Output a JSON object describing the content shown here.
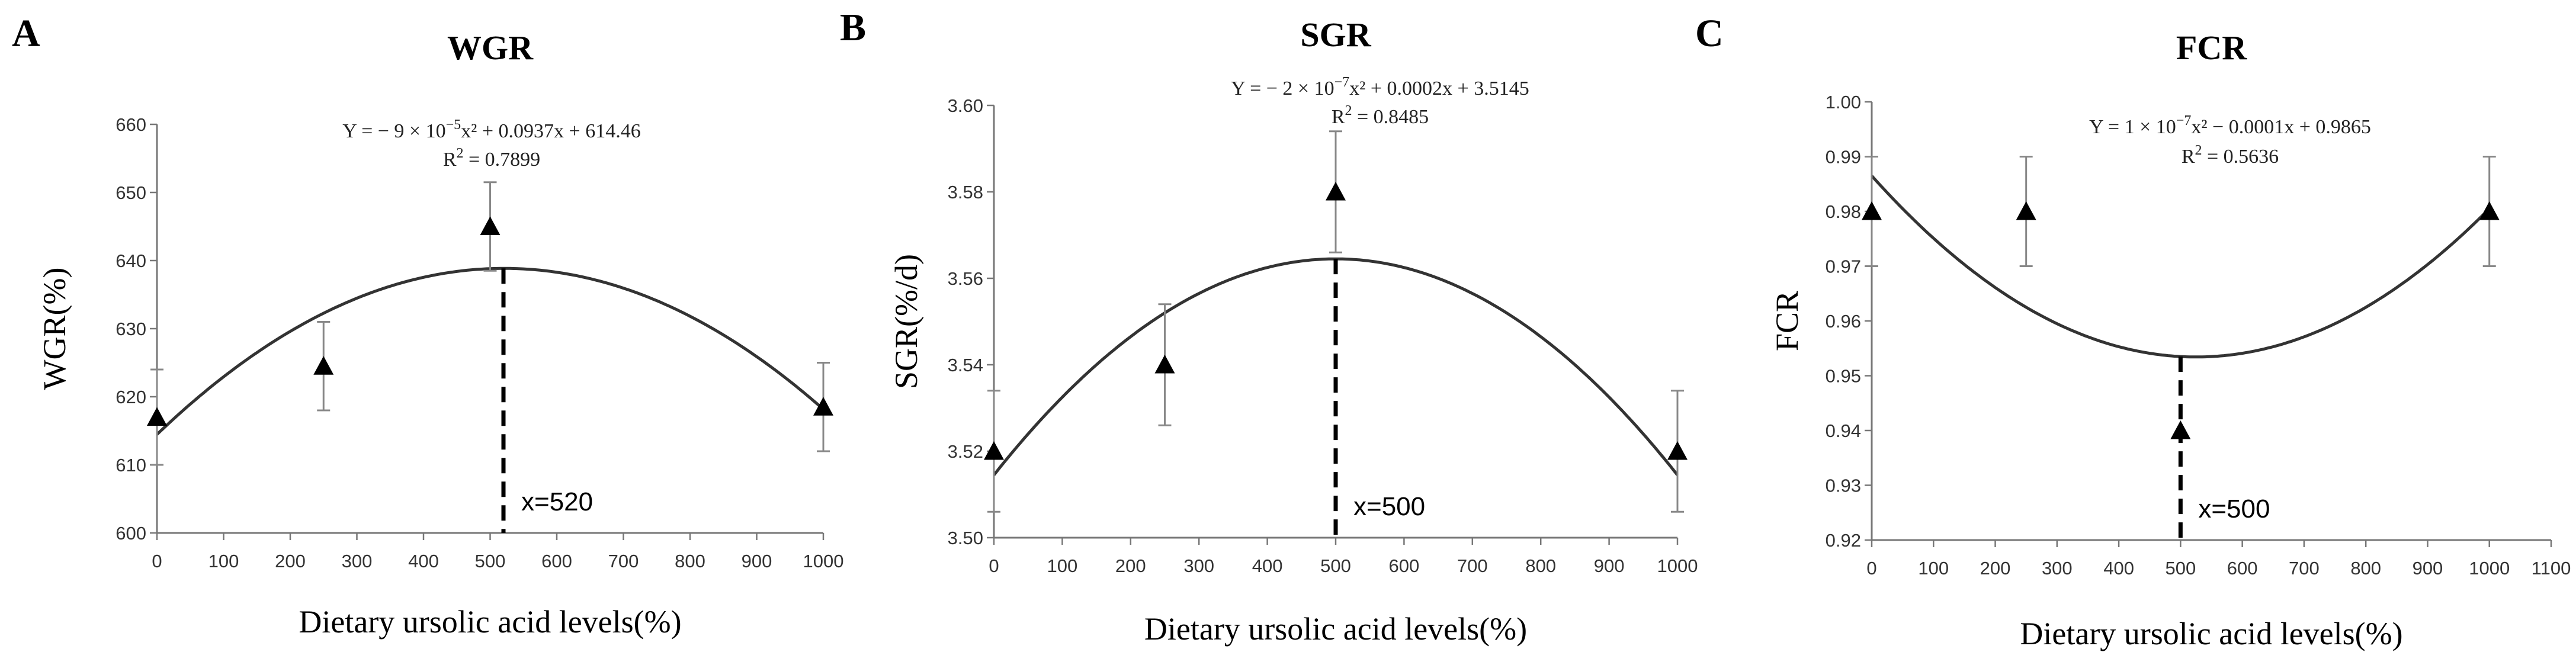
{
  "chart_data": [
    {
      "panel": "A",
      "type": "scatter",
      "title": "WGR",
      "xlabel": "Dietary ursolic acid levels(%)",
      "ylabel": "WGR(%)",
      "xlim": [
        0,
        1000
      ],
      "xticks": [
        0,
        100,
        200,
        300,
        400,
        500,
        600,
        700,
        800,
        900,
        1000
      ],
      "ylim": [
        600,
        660
      ],
      "yticks": [
        600,
        610,
        620,
        630,
        640,
        650,
        660
      ],
      "ytick_decimals": 0,
      "points": [
        {
          "x": 0,
          "y": 617,
          "err": 7
        },
        {
          "x": 250,
          "y": 624.5,
          "err": 6.5
        },
        {
          "x": 500,
          "y": 645,
          "err": 6.5
        },
        {
          "x": 1000,
          "y": 618.5,
          "err": 6.5
        }
      ],
      "fit": {
        "a": -9e-05,
        "b": 0.0937,
        "c": 614.46
      },
      "equation_pre": "Y = − 9 × 10",
      "equation_exp": "−5",
      "equation_post": "x² + 0.0937x + 614.46",
      "r2_pre": "R",
      "r2_post": " = 0.7899",
      "optimum_x": 520,
      "optimum_label": "x=520"
    },
    {
      "panel": "B",
      "type": "scatter",
      "title": "SGR",
      "xlabel": "Dietary ursolic acid levels(%)",
      "ylabel": "SGR(%/d)",
      "xlim": [
        0,
        1000
      ],
      "xticks": [
        0,
        100,
        200,
        300,
        400,
        500,
        600,
        700,
        800,
        900,
        1000
      ],
      "ylim": [
        3.5,
        3.6
      ],
      "yticks": [
        3.5,
        3.52,
        3.54,
        3.56,
        3.58,
        3.6
      ],
      "ytick_decimals": 2,
      "points": [
        {
          "x": 0,
          "y": 3.52,
          "err": 0.014
        },
        {
          "x": 250,
          "y": 3.54,
          "err": 0.014
        },
        {
          "x": 500,
          "y": 3.58,
          "err": 0.014
        },
        {
          "x": 1000,
          "y": 3.52,
          "err": 0.014
        }
      ],
      "fit": {
        "a": -2e-07,
        "b": 0.0002,
        "c": 3.5145
      },
      "equation_pre": "Y = − 2 × 10",
      "equation_exp": "−7",
      "equation_post": "x² + 0.0002x + 3.5145",
      "r2_pre": "R",
      "r2_post": " = 0.8485",
      "optimum_x": 500,
      "optimum_label": "x=500"
    },
    {
      "panel": "C",
      "type": "scatter",
      "title": "FCR",
      "xlabel": "Dietary ursolic acid levels(%)",
      "ylabel": "FCR",
      "xlim": [
        0,
        1100
      ],
      "xticks": [
        0,
        100,
        200,
        300,
        400,
        500,
        600,
        700,
        800,
        900,
        1000,
        1100
      ],
      "ylim": [
        0.92,
        1.0
      ],
      "yticks": [
        0.92,
        0.93,
        0.94,
        0.95,
        0.96,
        0.97,
        0.98,
        0.99,
        1.0
      ],
      "ytick_decimals": 2,
      "points": [
        {
          "x": 0,
          "y": 0.98,
          "err": 0.01
        },
        {
          "x": 250,
          "y": 0.98,
          "err": 0.01
        },
        {
          "x": 500,
          "y": 0.94,
          "err": 0
        },
        {
          "x": 1000,
          "y": 0.98,
          "err": 0.01
        }
      ],
      "fit": {
        "a": 1.2e-07,
        "b": -0.000126,
        "c": 0.9865
      },
      "equation_pre": "Y = 1 × 10",
      "equation_exp": "−7",
      "equation_post": "x² − 0.0001x + 0.9865",
      "r2_pre": "R",
      "r2_post": " = 0.5636",
      "optimum_x": 500,
      "optimum_label": "x=500"
    }
  ]
}
